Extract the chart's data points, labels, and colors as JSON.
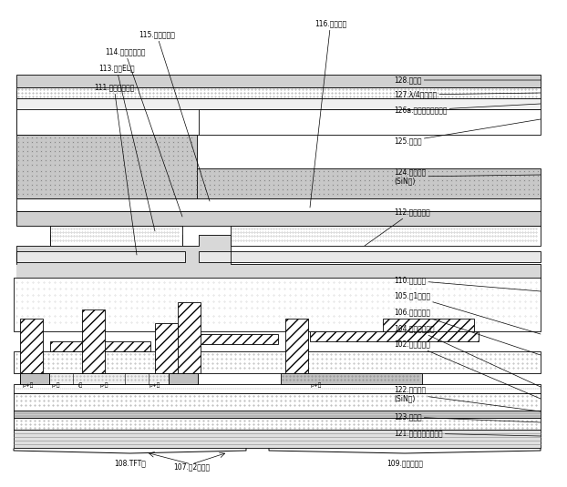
{
  "bg_color": "#ffffff",
  "line_color": "#000000",
  "labels": {
    "115": "115.キャップ層",
    "114": "114.カソード電極",
    "116": "116.発光素子",
    "113": "113.有機EL層",
    "111": "111.アノード電極",
    "128": "128.偏光板",
    "127": "127.λ/4位相整板",
    "126a": "126a.タッチスクリーン",
    "125": "125.有機膜",
    "124": "124.無機薄膜\n(SiN等)",
    "112": "112.素子分離膜",
    "110": "110.平坦化膜",
    "105": "105.第1金属層",
    "106": "106.層間絶縁膜",
    "104": "104.ゲート絶縁膜",
    "102": "102.下地絶縁膜",
    "122": "122.無機薄膜\n(SiN等)",
    "123": "123.有機膜",
    "121": "121.フレキシブル基板",
    "108": "108.TFT部",
    "107": "107.第2金属層",
    "109": "109.保持容量部"
  }
}
